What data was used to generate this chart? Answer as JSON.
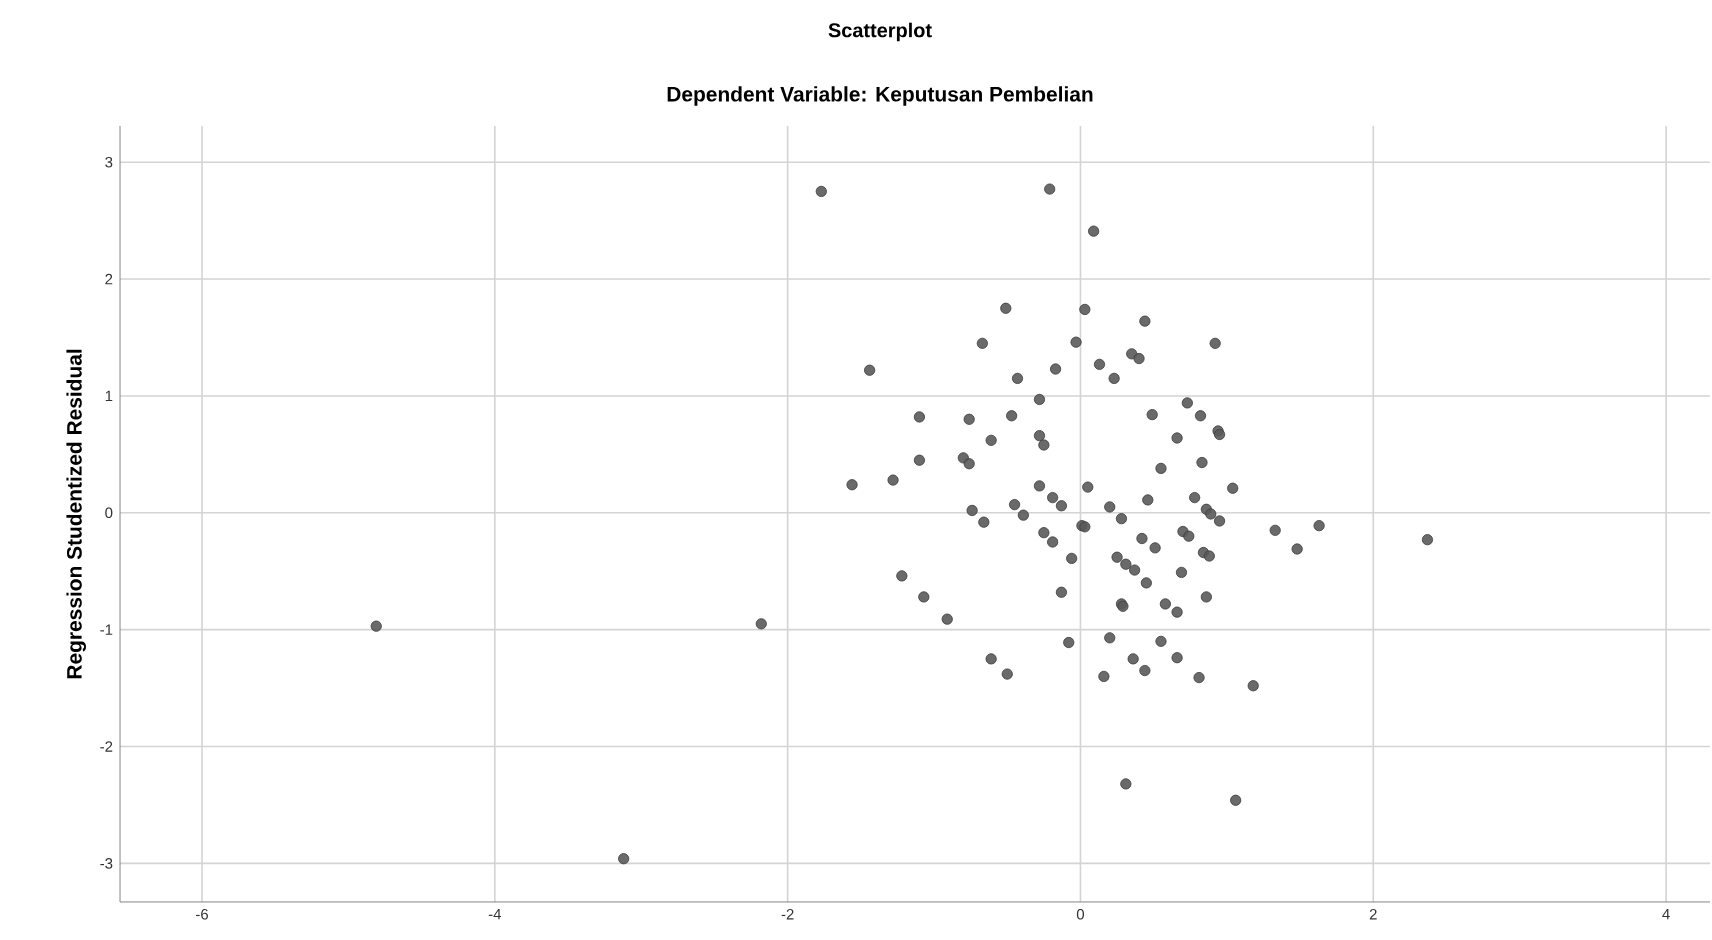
{
  "chart_data": {
    "type": "scatter",
    "title": "Scatterplot",
    "subtitle": "Dependent Variable: Keputusan Pembelian",
    "ylabel": "Regression Studentized Residual",
    "xlim": [
      -6.56,
      4.3
    ],
    "ylim": [
      -3.33,
      3.31
    ],
    "xticks": [
      -6,
      -4,
      -2,
      0,
      2,
      4
    ],
    "yticks": [
      -3,
      -2,
      -1,
      0,
      1,
      2,
      3
    ],
    "grid": true,
    "marker": "circle",
    "series": [
      {
        "color": "#5a5a5a",
        "x": [
          -1.77,
          -0.21,
          0.09,
          -0.51,
          0.03,
          0.44,
          -0.67,
          -0.03,
          0.92,
          -1.44,
          -0.17,
          0.13,
          0.35,
          0.4,
          0.23,
          -0.43,
          -0.28,
          0.73,
          0.82,
          -1.1,
          -0.76,
          -0.47,
          0.49,
          0.94,
          0.95,
          -0.61,
          -0.28,
          -0.25,
          0.66,
          -1.1,
          -0.8,
          -0.76,
          0.83,
          0.55,
          -1.56,
          -1.28,
          -0.28,
          0.05,
          1.04,
          -0.19,
          0.46,
          0.78,
          -0.13,
          -0.45,
          0.2,
          0.86,
          -0.74,
          -0.39,
          0.89,
          0.28,
          -0.66,
          0.95,
          0.01,
          0.03,
          -0.25,
          0.7,
          0.74,
          1.33,
          1.63,
          2.37,
          -0.19,
          0.42,
          0.51,
          1.48,
          0.84,
          0.88,
          0.25,
          0.31,
          0.37,
          -0.06,
          0.69,
          0.45,
          -1.22,
          -0.13,
          0.86,
          -1.07,
          0.28,
          0.29,
          0.58,
          0.66,
          -0.91,
          -4.81,
          -2.18,
          -0.08,
          0.2,
          0.55,
          -0.61,
          -0.5,
          0.36,
          0.66,
          0.44,
          0.16,
          0.81,
          1.18,
          0.31,
          1.06,
          -3.12
        ],
        "values": [
          2.75,
          2.77,
          2.41,
          1.75,
          1.74,
          1.64,
          1.45,
          1.46,
          1.45,
          1.22,
          1.23,
          1.27,
          1.36,
          1.32,
          1.15,
          1.15,
          0.97,
          0.94,
          0.83,
          0.82,
          0.8,
          0.83,
          0.84,
          0.7,
          0.67,
          0.62,
          0.66,
          0.58,
          0.64,
          0.45,
          0.47,
          0.42,
          0.43,
          0.38,
          0.24,
          0.28,
          0.23,
          0.22,
          0.21,
          0.13,
          0.11,
          0.13,
          0.06,
          0.07,
          0.05,
          0.03,
          0.02,
          -0.02,
          -0.01,
          -0.05,
          -0.08,
          -0.07,
          -0.11,
          -0.12,
          -0.17,
          -0.16,
          -0.2,
          -0.15,
          -0.11,
          -0.23,
          -0.25,
          -0.22,
          -0.3,
          -0.31,
          -0.34,
          -0.37,
          -0.38,
          -0.44,
          -0.49,
          -0.39,
          -0.51,
          -0.6,
          -0.54,
          -0.68,
          -0.72,
          -0.72,
          -0.78,
          -0.8,
          -0.78,
          -0.85,
          -0.91,
          -0.97,
          -0.95,
          -1.11,
          -1.07,
          -1.1,
          -1.25,
          -1.38,
          -1.25,
          -1.24,
          -1.35,
          -1.4,
          -1.41,
          -1.48,
          -2.32,
          -2.46,
          -2.96
        ]
      }
    ]
  }
}
